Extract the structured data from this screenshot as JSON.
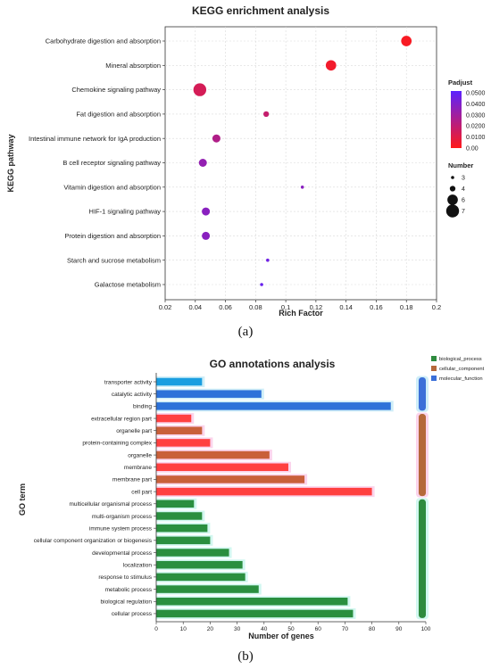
{
  "chart_data": [
    {
      "type": "scatter",
      "title": "KEGG enrichment analysis",
      "xlabel": "Rich Factor",
      "ylabel": "KEGG pathway",
      "xlim": [
        0.02,
        0.2
      ],
      "x_ticks": [
        "0.02",
        "0.04",
        "0.06",
        "0.08",
        "0.1",
        "0.12",
        "0.14",
        "0.16",
        "0.18",
        "0.2"
      ],
      "categories": [
        "Carbohydrate digestion and absorption",
        "Mineral absorption",
        "Chemokine signaling pathway",
        "Fat digestion and absorption",
        "Intestinal immune network for IgA production",
        "B cell receptor signaling pathway",
        "Vitamin digestion and absorption",
        "HIF-1 signaling pathway",
        "Protein digestion and absorption",
        "Starch and sucrose metabolism",
        "Galactose metabolism"
      ],
      "points": [
        {
          "pathway": "Carbohydrate digestion and absorption",
          "rich_factor": 0.18,
          "number": 6,
          "padjust": 0.002
        },
        {
          "pathway": "Mineral absorption",
          "rich_factor": 0.13,
          "number": 6,
          "padjust": 0.004
        },
        {
          "pathway": "Chemokine signaling pathway",
          "rich_factor": 0.043,
          "number": 7,
          "padjust": 0.013
        },
        {
          "pathway": "Fat digestion and absorption",
          "rich_factor": 0.087,
          "number": 4,
          "padjust": 0.018
        },
        {
          "pathway": "Intestinal immune network for IgA production",
          "rich_factor": 0.054,
          "number": 5,
          "padjust": 0.024
        },
        {
          "pathway": "B cell receptor signaling pathway",
          "rich_factor": 0.045,
          "number": 5,
          "padjust": 0.033
        },
        {
          "pathway": "Vitamin digestion and absorption",
          "rich_factor": 0.111,
          "number": 3,
          "padjust": 0.036
        },
        {
          "pathway": "HIF-1 signaling pathway",
          "rich_factor": 0.047,
          "number": 5,
          "padjust": 0.036
        },
        {
          "pathway": "Protein digestion and absorption",
          "rich_factor": 0.047,
          "number": 5,
          "padjust": 0.036
        },
        {
          "pathway": "Starch and sucrose metabolism",
          "rich_factor": 0.088,
          "number": 3,
          "padjust": 0.044
        },
        {
          "pathway": "Galactose metabolism",
          "rich_factor": 0.084,
          "number": 3,
          "padjust": 0.046
        }
      ],
      "color_legend": {
        "title": "Padjust",
        "labels": [
          "0.0500",
          "0.0400",
          "0.0300",
          "0.0200",
          "0.0100",
          "0.00"
        ],
        "high_color": "#5b22ff",
        "low_color": "#ff1a1a"
      },
      "size_legend": {
        "title": "Number",
        "values": [
          3,
          4,
          6,
          7
        ]
      },
      "caption": "(a)"
    },
    {
      "type": "bar",
      "orientation": "horizontal",
      "title": "GO annotations analysis",
      "xlabel": "Number of genes",
      "ylabel": "GO term",
      "xlim": [
        0,
        100
      ],
      "x_ticks": [
        "0",
        "10",
        "20",
        "30",
        "40",
        "50",
        "60",
        "70",
        "80",
        "90",
        "100"
      ],
      "legend": [
        {
          "name": "biological_process",
          "color": "#2e8b3e"
        },
        {
          "name": "cellular_component",
          "color": "#b5683a"
        },
        {
          "name": "molecular_function",
          "color": "#3b6fd8"
        }
      ],
      "bars": [
        {
          "term": "transporter activity",
          "value": 17,
          "group": "molecular_function"
        },
        {
          "term": "catalytic activity",
          "value": 39,
          "group": "molecular_function"
        },
        {
          "term": "binding",
          "value": 87,
          "group": "molecular_function"
        },
        {
          "term": "extracellular region part",
          "value": 13,
          "group": "cellular_component"
        },
        {
          "term": "organelle part",
          "value": 17,
          "group": "cellular_component"
        },
        {
          "term": "protein-containing complex",
          "value": 20,
          "group": "cellular_component"
        },
        {
          "term": "organelle",
          "value": 42,
          "group": "cellular_component"
        },
        {
          "term": "membrane",
          "value": 49,
          "group": "cellular_component"
        },
        {
          "term": "membrane part",
          "value": 55,
          "group": "cellular_component"
        },
        {
          "term": "cell part",
          "value": 80,
          "group": "cellular_component"
        },
        {
          "term": "multicellular organismal process",
          "value": 14,
          "group": "biological_process"
        },
        {
          "term": "multi-organism process",
          "value": 17,
          "group": "biological_process"
        },
        {
          "term": "immune system process",
          "value": 19,
          "group": "biological_process"
        },
        {
          "term": "cellular component organization or biogenesis",
          "value": 20,
          "group": "biological_process"
        },
        {
          "term": "developmental process",
          "value": 27,
          "group": "biological_process"
        },
        {
          "term": "localization",
          "value": 32,
          "group": "biological_process"
        },
        {
          "term": "response to stimulus",
          "value": 33,
          "group": "biological_process"
        },
        {
          "term": "metabolic process",
          "value": 38,
          "group": "biological_process"
        },
        {
          "term": "biological regulation",
          "value": 71,
          "group": "biological_process"
        },
        {
          "term": "cellular process",
          "value": 73,
          "group": "biological_process"
        }
      ],
      "caption": "(b)"
    }
  ]
}
